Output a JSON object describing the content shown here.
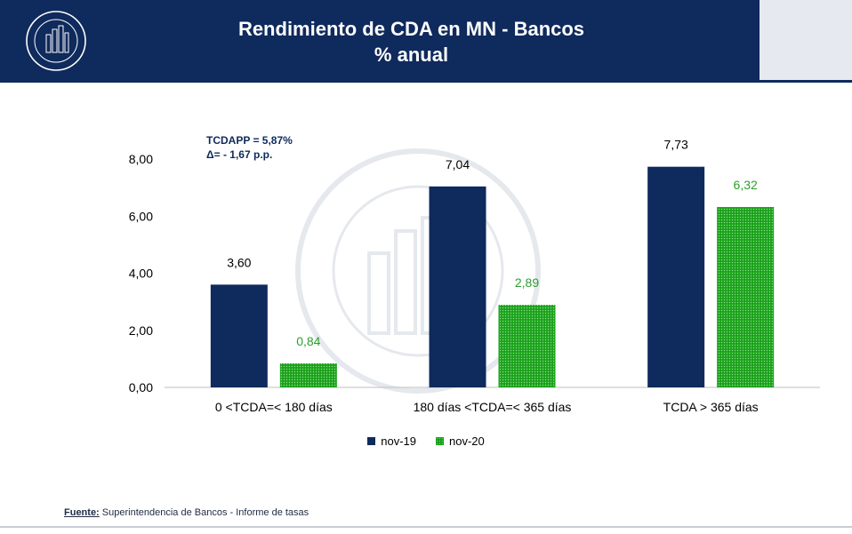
{
  "header": {
    "title_line1": "Rendimiento de CDA en MN - Bancos",
    "title_line2": "% anual",
    "logo_icon": "banco-central-seal-icon"
  },
  "annotation": {
    "line1": "TCDAPP = 5,87%",
    "line2": "Δ=  - 1,67 p.p."
  },
  "chart_data": {
    "type": "bar",
    "categories": [
      "0 <TCDA=< 180 días",
      "180 días <TCDA=< 365 días",
      "TCDA > 365 días"
    ],
    "series": [
      {
        "name": "nov-19",
        "values": [
          3.6,
          7.04,
          7.73
        ],
        "labels": [
          "3,60",
          "7,04",
          "7,73"
        ],
        "color": "#0f2a5c",
        "label_color": "#000000"
      },
      {
        "name": "nov-20",
        "values": [
          0.84,
          2.89,
          6.32
        ],
        "labels": [
          "0,84",
          "2,89",
          "6,32"
        ],
        "color": "#1aa01a",
        "label_color": "#2ca02c"
      }
    ],
    "ylim": [
      0,
      8
    ],
    "yticks": [
      "0,00",
      "2,00",
      "4,00",
      "6,00",
      "8,00"
    ],
    "ytick_values": [
      0,
      2,
      4,
      6,
      8
    ],
    "grid": false,
    "legend_position": "bottom-center"
  },
  "footer": {
    "source_label": "Fuente:",
    "source_text": " Superintendencia de Bancos - Informe de tasas"
  }
}
